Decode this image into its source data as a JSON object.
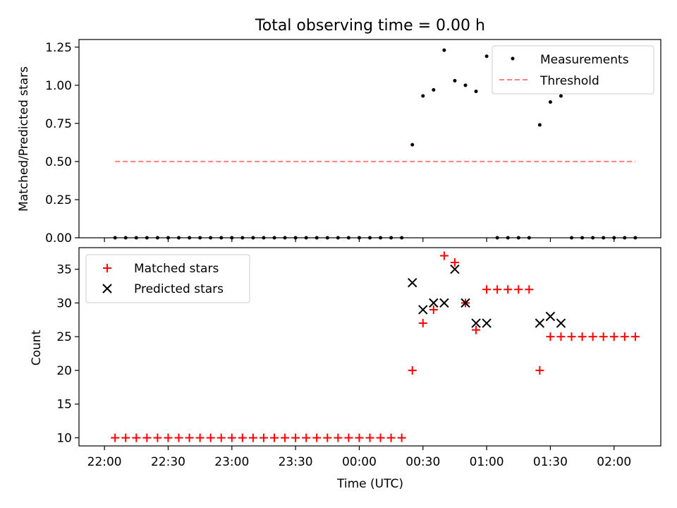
{
  "chart_data": [
    {
      "type": "scatter",
      "title": "Total observing time = 0.00 h",
      "ylabel": "Matched/Predicted stars",
      "ylim": [
        0,
        1.3
      ],
      "xlim": [
        "21:48",
        "02:22"
      ],
      "yticks": [
        "0.00",
        "0.25",
        "0.50",
        "0.75",
        "1.00",
        "1.25"
      ],
      "legend_position": "top-right",
      "series": [
        {
          "name": "Measurements",
          "marker": "dot",
          "color": "#000000",
          "points": [
            [
              "22:05",
              0
            ],
            [
              "22:10",
              0
            ],
            [
              "22:15",
              0
            ],
            [
              "22:20",
              0
            ],
            [
              "22:25",
              0
            ],
            [
              "22:30",
              0
            ],
            [
              "22:35",
              0
            ],
            [
              "22:40",
              0
            ],
            [
              "22:45",
              0
            ],
            [
              "22:50",
              0
            ],
            [
              "22:55",
              0
            ],
            [
              "23:00",
              0
            ],
            [
              "23:05",
              0
            ],
            [
              "23:10",
              0
            ],
            [
              "23:15",
              0
            ],
            [
              "23:20",
              0
            ],
            [
              "23:25",
              0
            ],
            [
              "23:30",
              0
            ],
            [
              "23:35",
              0
            ],
            [
              "23:40",
              0
            ],
            [
              "23:45",
              0
            ],
            [
              "23:50",
              0
            ],
            [
              "23:55",
              0
            ],
            [
              "00:00",
              0
            ],
            [
              "00:05",
              0
            ],
            [
              "00:10",
              0
            ],
            [
              "00:15",
              0
            ],
            [
              "00:20",
              0
            ],
            [
              "00:25",
              0.61
            ],
            [
              "00:30",
              0.93
            ],
            [
              "00:35",
              0.97
            ],
            [
              "00:40",
              1.23
            ],
            [
              "00:45",
              1.03
            ],
            [
              "00:50",
              1.0
            ],
            [
              "00:55",
              0.96
            ],
            [
              "01:00",
              1.19
            ],
            [
              "01:05",
              0
            ],
            [
              "01:10",
              0
            ],
            [
              "01:15",
              0
            ],
            [
              "01:20",
              0
            ],
            [
              "01:25",
              0.74
            ],
            [
              "01:30",
              0.89
            ],
            [
              "01:35",
              0.93
            ],
            [
              "01:40",
              0
            ],
            [
              "01:45",
              0
            ],
            [
              "01:50",
              0
            ],
            [
              "01:55",
              0
            ],
            [
              "02:00",
              0
            ],
            [
              "02:05",
              0
            ],
            [
              "02:10",
              0
            ]
          ]
        },
        {
          "name": "Threshold",
          "type": "line",
          "style": "dashed",
          "color": "#ff8080",
          "points": [
            [
              "22:05",
              0.5
            ],
            [
              "02:10",
              0.5
            ]
          ]
        }
      ]
    },
    {
      "type": "scatter",
      "xlabel": "Time (UTC)",
      "ylabel": "Count",
      "ylim": [
        8.8,
        38.2
      ],
      "xlim": [
        "21:48",
        "02:22"
      ],
      "yticks": [
        "10",
        "15",
        "20",
        "25",
        "30",
        "35"
      ],
      "xticks": [
        "22:00",
        "22:30",
        "23:00",
        "23:30",
        "00:00",
        "00:30",
        "01:00",
        "01:30",
        "02:00"
      ],
      "legend_position": "top-left",
      "series": [
        {
          "name": "Matched stars",
          "marker": "plus",
          "color": "#ff0000",
          "points": [
            [
              "22:05",
              10
            ],
            [
              "22:10",
              10
            ],
            [
              "22:15",
              10
            ],
            [
              "22:20",
              10
            ],
            [
              "22:25",
              10
            ],
            [
              "22:30",
              10
            ],
            [
              "22:35",
              10
            ],
            [
              "22:40",
              10
            ],
            [
              "22:45",
              10
            ],
            [
              "22:50",
              10
            ],
            [
              "22:55",
              10
            ],
            [
              "23:00",
              10
            ],
            [
              "23:05",
              10
            ],
            [
              "23:10",
              10
            ],
            [
              "23:15",
              10
            ],
            [
              "23:20",
              10
            ],
            [
              "23:25",
              10
            ],
            [
              "23:30",
              10
            ],
            [
              "23:35",
              10
            ],
            [
              "23:40",
              10
            ],
            [
              "23:45",
              10
            ],
            [
              "23:50",
              10
            ],
            [
              "23:55",
              10
            ],
            [
              "00:00",
              10
            ],
            [
              "00:05",
              10
            ],
            [
              "00:10",
              10
            ],
            [
              "00:15",
              10
            ],
            [
              "00:20",
              10
            ],
            [
              "00:25",
              20
            ],
            [
              "00:30",
              27
            ],
            [
              "00:35",
              29
            ],
            [
              "00:40",
              37
            ],
            [
              "00:45",
              36
            ],
            [
              "00:50",
              30
            ],
            [
              "00:55",
              26
            ],
            [
              "01:00",
              32
            ],
            [
              "01:05",
              32
            ],
            [
              "01:10",
              32
            ],
            [
              "01:15",
              32
            ],
            [
              "01:20",
              32
            ],
            [
              "01:25",
              20
            ],
            [
              "01:30",
              25
            ],
            [
              "01:35",
              25
            ],
            [
              "01:40",
              25
            ],
            [
              "01:45",
              25
            ],
            [
              "01:50",
              25
            ],
            [
              "01:55",
              25
            ],
            [
              "02:00",
              25
            ],
            [
              "02:05",
              25
            ],
            [
              "02:10",
              25
            ]
          ]
        },
        {
          "name": "Predicted stars",
          "marker": "x",
          "color": "#000000",
          "points": [
            [
              "00:25",
              33
            ],
            [
              "00:30",
              29
            ],
            [
              "00:35",
              30
            ],
            [
              "00:40",
              30
            ],
            [
              "00:45",
              35
            ],
            [
              "00:50",
              30
            ],
            [
              "00:55",
              27
            ],
            [
              "01:00",
              27
            ],
            [
              "01:25",
              27
            ],
            [
              "01:30",
              28
            ],
            [
              "01:35",
              27
            ]
          ]
        }
      ]
    }
  ]
}
